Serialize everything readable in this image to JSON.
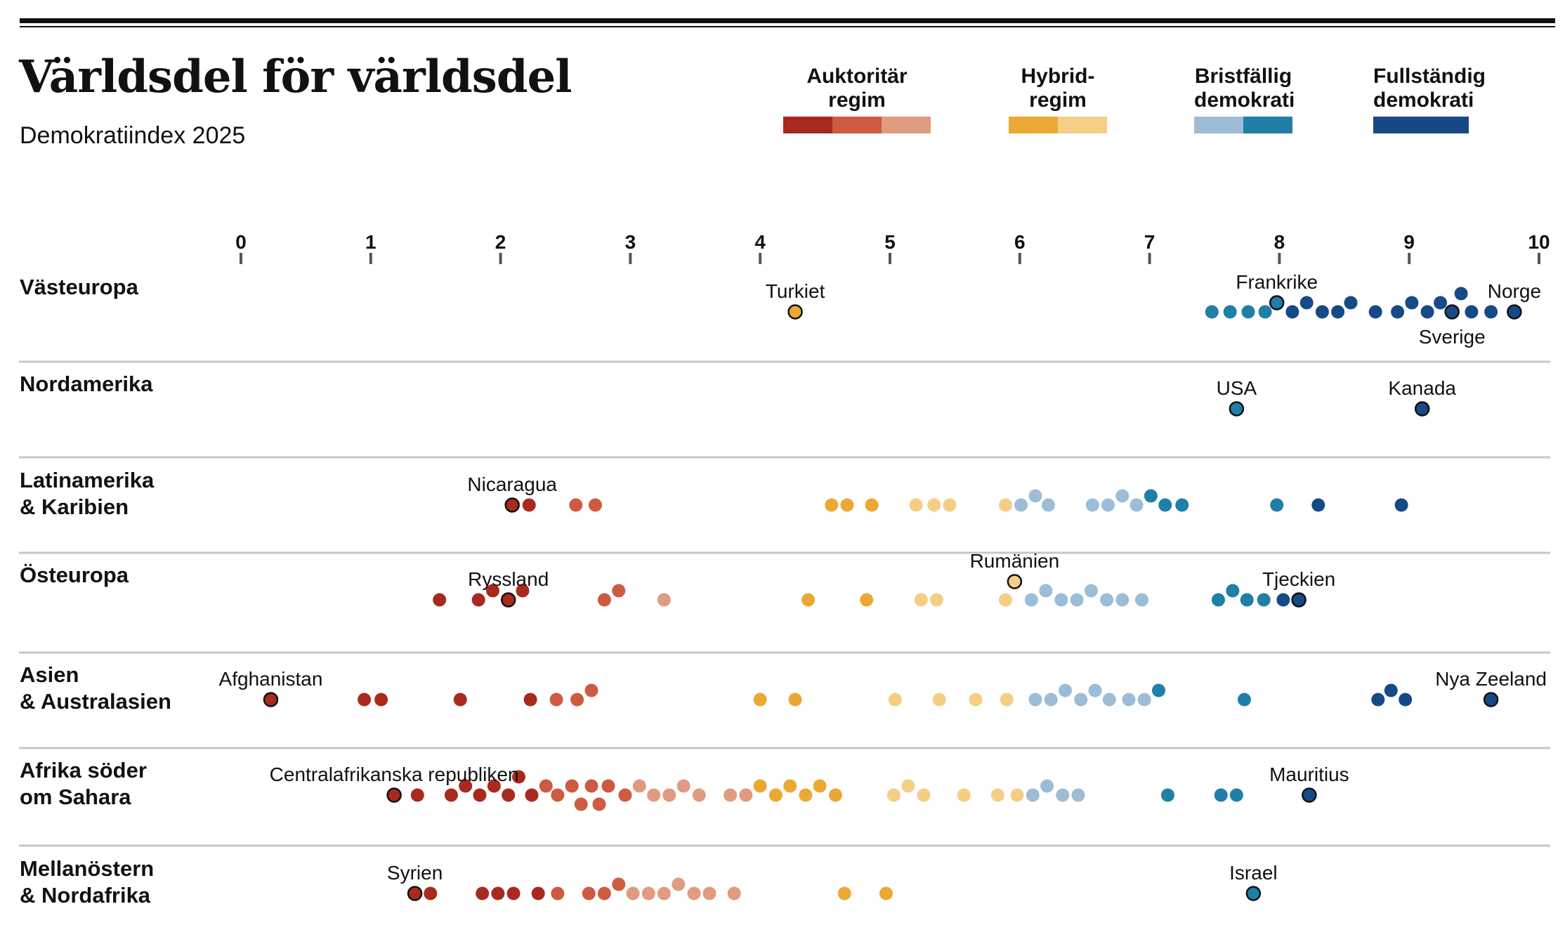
{
  "header": {
    "title": "Världsdel för världsdel",
    "subtitle": "Demokratiindex 2025"
  },
  "legend": [
    {
      "line1": "Auktoritär",
      "line2": "regim",
      "colors": [
        "#A82A1E",
        "#CF5A42",
        "#E09B80"
      ]
    },
    {
      "line1": "Hybrid-",
      "line2": "regim",
      "colors": [
        "#EBA835",
        "#F5CE85"
      ]
    },
    {
      "line1": "Bristfällig",
      "line2": "demokrati",
      "colors": [
        "#9DBDD6",
        "#1F7FA6"
      ]
    },
    {
      "line1": "Fullständig",
      "line2": "demokrati",
      "colors": [
        "#154A86"
      ]
    }
  ],
  "chart_data": {
    "type": "scatter",
    "x_axis": {
      "min": 0,
      "max": 10,
      "ticks": [
        "0",
        "1",
        "2",
        "3",
        "4",
        "5",
        "6",
        "7",
        "8",
        "9",
        "10"
      ]
    },
    "colors": {
      "auth_dark": "#A82A1E",
      "auth_mid": "#CF5A42",
      "auth_light": "#E09B80",
      "hyb_dark": "#EBA835",
      "hyb_light": "#F5CE85",
      "flaw_light": "#9DBDD6",
      "flaw_dark": "#1F7FA6",
      "full": "#154A86"
    },
    "regions": [
      {
        "name": [
          "Västeuropa"
        ],
        "points": [
          4.27,
          7.48,
          7.62,
          7.76,
          7.89,
          7.98,
          8.1,
          8.21,
          8.33,
          8.45,
          8.55,
          8.74,
          8.91,
          9.02,
          9.14,
          9.24,
          9.33,
          9.4,
          9.48,
          9.63,
          9.81
        ],
        "labeled": [
          {
            "name": "Turkiet",
            "value": 4.27,
            "pos": "above"
          },
          {
            "name": "Frankrike",
            "value": 7.98,
            "pos": "above"
          },
          {
            "name": "Sverige",
            "value": 9.33,
            "pos": "below"
          },
          {
            "name": "Norge",
            "value": 9.81,
            "pos": "above"
          }
        ]
      },
      {
        "name": [
          "Nordamerika"
        ],
        "points": [
          7.67,
          9.1
        ],
        "labeled": [
          {
            "name": "USA",
            "value": 7.67,
            "pos": "above"
          },
          {
            "name": "Kanada",
            "value": 9.1,
            "pos": "above"
          }
        ]
      },
      {
        "name": [
          "Latinamerika",
          "& Karibien"
        ],
        "points": [
          2.09,
          2.22,
          2.58,
          2.73,
          4.55,
          4.67,
          4.86,
          5.2,
          5.34,
          5.46,
          5.89,
          6.01,
          6.12,
          6.22,
          6.56,
          6.68,
          6.79,
          6.9,
          7.01,
          7.12,
          7.25,
          7.98,
          8.3,
          8.94
        ],
        "labeled": [
          {
            "name": "Nicaragua",
            "value": 2.09,
            "pos": "above"
          }
        ]
      },
      {
        "name": [
          "Östeuropa"
        ],
        "points": [
          1.53,
          1.83,
          1.94,
          2.06,
          2.17,
          2.8,
          2.91,
          3.26,
          4.37,
          4.82,
          5.24,
          5.36,
          5.89,
          5.96,
          6.09,
          6.2,
          6.32,
          6.44,
          6.55,
          6.67,
          6.79,
          6.94,
          7.53,
          7.64,
          7.75,
          7.88,
          8.03,
          8.15
        ],
        "labeled": [
          {
            "name": "Ryssland",
            "value": 2.06,
            "pos": "above"
          },
          {
            "name": "Rumänien",
            "value": 5.96,
            "pos": "above"
          },
          {
            "name": "Tjeckien",
            "value": 8.15,
            "pos": "above"
          }
        ]
      },
      {
        "name": [
          "Asien",
          "& Australasien"
        ],
        "points": [
          0.23,
          0.95,
          1.08,
          1.69,
          2.23,
          2.43,
          2.59,
          2.7,
          4.0,
          4.27,
          5.04,
          5.38,
          5.66,
          5.9,
          6.12,
          6.24,
          6.35,
          6.47,
          6.58,
          6.69,
          6.84,
          6.96,
          7.07,
          7.73,
          8.76,
          8.86,
          8.97,
          9.63
        ],
        "labeled": [
          {
            "name": "Afghanistan",
            "value": 0.23,
            "pos": "above"
          },
          {
            "name": "Nya Zeeland",
            "value": 9.63,
            "pos": "above"
          }
        ]
      },
      {
        "name": [
          "Afrika söder",
          "om Sahara"
        ],
        "points": [
          1.18,
          1.36,
          1.62,
          1.73,
          1.84,
          1.95,
          2.06,
          2.14,
          2.24,
          2.35,
          2.44,
          2.55,
          2.62,
          2.7,
          2.76,
          2.83,
          2.96,
          3.07,
          3.18,
          3.3,
          3.41,
          3.53,
          3.77,
          3.89,
          4.0,
          4.12,
          4.23,
          4.35,
          4.46,
          4.58,
          5.03,
          5.14,
          5.26,
          5.57,
          5.83,
          5.98,
          6.1,
          6.21,
          6.33,
          6.45,
          7.14,
          7.55,
          7.67,
          8.23
        ],
        "labeled": [
          {
            "name": "Centralafrikanska republiken",
            "value": 1.18,
            "pos": "above"
          },
          {
            "name": "Mauritius",
            "value": 8.23,
            "pos": "above"
          }
        ]
      },
      {
        "name": [
          "Mellanöstern",
          "& Nordafrika"
        ],
        "points": [
          1.34,
          1.46,
          1.86,
          1.98,
          2.1,
          2.29,
          2.44,
          2.68,
          2.8,
          2.91,
          3.02,
          3.14,
          3.26,
          3.37,
          3.49,
          3.61,
          3.8,
          4.65,
          4.97,
          7.8
        ],
        "labeled": [
          {
            "name": "Syrien",
            "value": 1.34,
            "pos": "above"
          },
          {
            "name": "Israel",
            "value": 7.8,
            "pos": "above"
          }
        ]
      }
    ]
  }
}
